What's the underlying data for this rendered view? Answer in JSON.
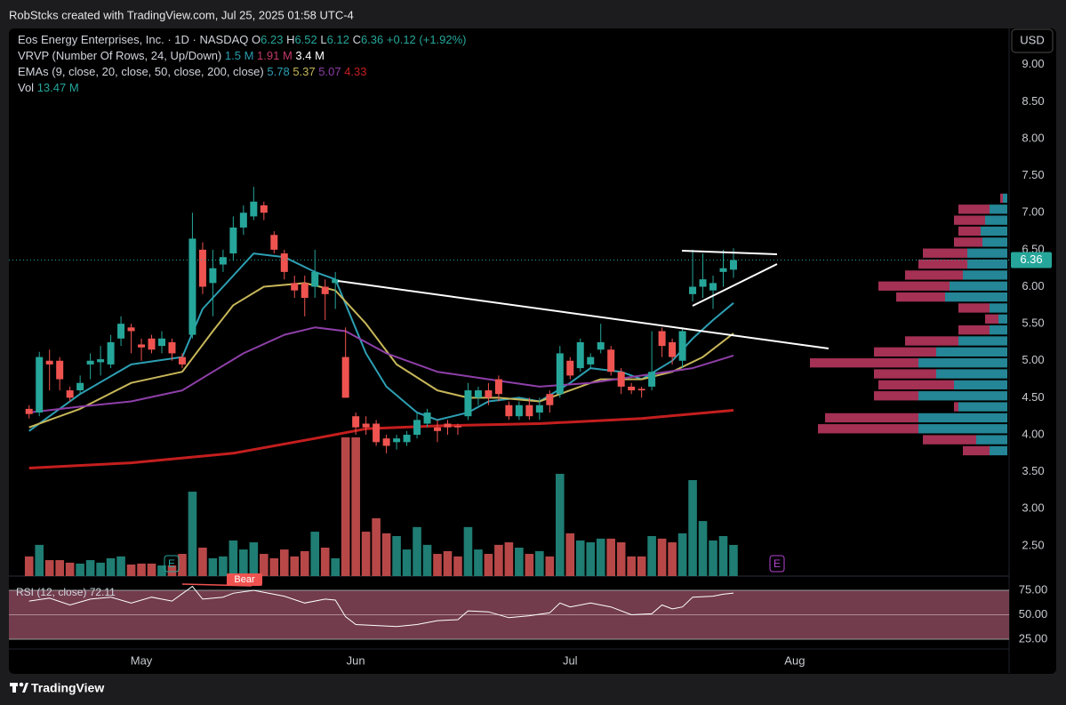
{
  "header": "RobStcks created with TradingView.com, Jul 25, 2025 01:58 UTC-4",
  "footer": "TradingView",
  "chart_data": {
    "type": "candlestick",
    "title": "Eos Energy Enterprises, Inc. · 1D · NASDAQ",
    "ohlc_letters": [
      "O",
      "H",
      "L",
      "C"
    ],
    "change": "+0.12 (+1.92%)",
    "currency": "USD",
    "up_color": "#26a69a",
    "down_color": "#ef5350",
    "open": [
      4.35,
      4.3,
      5.0,
      5.0,
      4.6,
      4.6,
      4.95,
      4.98,
      4.95,
      5.3,
      5.45,
      5.22,
      5.3,
      5.2,
      5.25,
      5.05,
      5.35,
      6.5,
      6.05,
      6.3,
      6.45,
      6.8,
      6.95,
      7.1,
      6.7,
      6.45,
      6.05,
      6.05,
      6.0,
      6.0,
      6.05,
      5.05,
      4.25,
      4.15,
      4.15,
      3.95,
      3.9,
      3.9,
      4.0,
      4.15,
      4.1,
      4.15,
      4.12,
      4.25,
      4.5,
      4.6,
      4.75,
      4.4,
      4.25,
      4.4,
      4.3,
      4.55,
      4.55,
      5.0,
      4.9,
      4.95,
      5.15,
      5.15,
      4.85,
      4.65,
      4.62,
      4.65,
      5.4,
      5.25,
      5.0,
      5.9,
      6.0,
      5.95,
      6.2,
      6.23
    ],
    "high": [
      4.4,
      5.12,
      5.15,
      5.05,
      4.65,
      4.8,
      5.1,
      5.2,
      5.35,
      5.6,
      5.5,
      5.3,
      5.35,
      5.4,
      5.3,
      5.1,
      7.0,
      6.6,
      6.5,
      6.5,
      6.95,
      7.1,
      7.35,
      7.15,
      6.75,
      6.5,
      6.15,
      6.15,
      6.5,
      6.1,
      6.2,
      5.45,
      4.3,
      4.25,
      4.2,
      4.0,
      4.0,
      4.05,
      4.3,
      4.35,
      4.2,
      4.2,
      4.15,
      4.7,
      4.65,
      4.7,
      4.8,
      4.45,
      4.45,
      4.5,
      4.5,
      4.6,
      5.2,
      5.05,
      5.3,
      5.1,
      5.5,
      5.2,
      4.9,
      4.7,
      4.65,
      5.4,
      5.45,
      5.3,
      5.45,
      6.5,
      6.45,
      6.15,
      6.5,
      6.52
    ],
    "low": [
      4.22,
      4.25,
      4.6,
      4.6,
      4.45,
      4.55,
      4.75,
      4.8,
      4.9,
      5.2,
      5.1,
      5.0,
      5.1,
      5.1,
      5.0,
      4.9,
      5.3,
      5.9,
      5.6,
      6.2,
      6.35,
      6.7,
      6.9,
      6.9,
      6.45,
      6.1,
      5.85,
      5.6,
      5.85,
      5.55,
      5.7,
      4.5,
      4.0,
      4.0,
      3.85,
      3.75,
      3.8,
      3.85,
      3.95,
      4.1,
      3.9,
      4.0,
      4.0,
      4.2,
      4.4,
      4.4,
      4.45,
      4.2,
      4.2,
      4.2,
      4.2,
      4.3,
      4.5,
      4.75,
      4.85,
      4.9,
      5.1,
      4.8,
      4.55,
      4.55,
      4.5,
      4.6,
      5.05,
      4.95,
      4.9,
      5.8,
      5.85,
      5.7,
      6.0,
      6.12
    ],
    "close": [
      4.28,
      5.05,
      4.95,
      4.75,
      4.5,
      4.7,
      5.0,
      5.02,
      5.25,
      5.5,
      5.4,
      5.18,
      5.15,
      5.3,
      5.1,
      4.95,
      6.65,
      6.0,
      6.25,
      6.4,
      6.8,
      7.0,
      7.15,
      7.0,
      6.5,
      6.2,
      5.95,
      5.85,
      6.2,
      5.9,
      6.1,
      4.5,
      4.1,
      4.1,
      3.9,
      3.85,
      3.95,
      4.0,
      4.2,
      4.3,
      4.05,
      4.1,
      4.1,
      4.6,
      4.6,
      4.5,
      4.55,
      4.25,
      4.4,
      4.25,
      4.4,
      4.4,
      5.1,
      4.8,
      5.25,
      5.05,
      5.25,
      4.85,
      4.65,
      4.6,
      4.6,
      4.85,
      5.2,
      5.05,
      5.4,
      6.0,
      6.1,
      6.05,
      6.25,
      6.36
    ],
    "xlim": [
      -1.98,
      96.0
    ],
    "xticks": [
      {
        "value": 11,
        "label": "May"
      },
      {
        "value": 32,
        "label": "Jun"
      },
      {
        "value": 53,
        "label": "Jul"
      },
      {
        "value": 75,
        "label": "Aug"
      }
    ],
    "ylim": [
      2.09,
      9.49
    ],
    "yticks": [
      {
        "value": 2.5,
        "label": "2.50"
      },
      {
        "value": 3,
        "label": "3.00"
      },
      {
        "value": 3.5,
        "label": "3.50"
      },
      {
        "value": 4,
        "label": "4.00"
      },
      {
        "value": 4.5,
        "label": "4.50"
      },
      {
        "value": 5,
        "label": "5.00"
      },
      {
        "value": 5.5,
        "label": "5.50"
      },
      {
        "value": 6,
        "label": "6.00"
      },
      {
        "value": 6.5,
        "label": "6.50"
      },
      {
        "value": 7,
        "label": "7.00"
      },
      {
        "value": 7.5,
        "label": "7.50"
      },
      {
        "value": 8,
        "label": "8.00"
      },
      {
        "value": 8.5,
        "label": "8.50"
      },
      {
        "value": 9,
        "label": "9.00"
      }
    ],
    "volume": {
      "name": "Vol",
      "last_label": "13.47 M",
      "up_color": "#1f7d73",
      "down_color": "#b84848",
      "ylim": [
        0,
        61.5
      ],
      "values": [
        8.5,
        13.5,
        6.9,
        6.9,
        5.8,
        5.4,
        6.9,
        5.8,
        7.7,
        8.5,
        5.0,
        5.4,
        5.4,
        4.6,
        4.6,
        9.6,
        36.5,
        12.3,
        7.7,
        8.5,
        15.4,
        11.5,
        14.6,
        9.6,
        7.7,
        11.5,
        8.5,
        10.8,
        19.2,
        12.3,
        7.7,
        60.0,
        60.0,
        19.2,
        25.0,
        18.5,
        17.3,
        11.5,
        21.2,
        13.5,
        9.6,
        10.8,
        8.5,
        21.2,
        11.5,
        9.6,
        13.5,
        14.6,
        12.3,
        9.6,
        10.8,
        8.5,
        44.2,
        18.5,
        15.4,
        14.6,
        16.2,
        16.2,
        14.6,
        8.5,
        8.5,
        17.3,
        16.2,
        14.6,
        18.5,
        41.5,
        23.8,
        15.4,
        17.3,
        13.47
      ]
    },
    "emas": {
      "label": "EMAs (9, close, 20, close, 50, close, 200, close)",
      "series": [
        {
          "color": "#2d9fb3",
          "x": [
            0,
            5,
            10,
            15,
            17,
            20,
            22,
            25,
            28,
            30,
            33,
            35,
            38,
            40,
            43,
            45,
            48,
            50,
            53,
            55,
            58,
            60,
            63,
            65,
            67,
            69
          ],
          "values": [
            4.05,
            4.55,
            4.95,
            5.05,
            5.7,
            6.15,
            6.45,
            6.4,
            6.2,
            6.1,
            5.1,
            4.65,
            4.3,
            4.2,
            4.3,
            4.45,
            4.5,
            4.45,
            4.7,
            4.9,
            4.85,
            4.75,
            5.0,
            5.3,
            5.55,
            5.78
          ]
        },
        {
          "color": "#c7b75a",
          "x": [
            0,
            5,
            10,
            15,
            18,
            20,
            23,
            27,
            30,
            33,
            36,
            40,
            43,
            46,
            50,
            53,
            56,
            60,
            63,
            66,
            69
          ],
          "values": [
            4.1,
            4.35,
            4.7,
            4.85,
            5.4,
            5.75,
            6.0,
            6.05,
            5.95,
            5.5,
            4.95,
            4.6,
            4.5,
            4.5,
            4.45,
            4.6,
            4.75,
            4.75,
            4.85,
            5.05,
            5.37
          ]
        },
        {
          "color": "#8e3fa8",
          "x": [
            0,
            5,
            10,
            15,
            18,
            21,
            25,
            28,
            31,
            35,
            40,
            45,
            50,
            55,
            60,
            65,
            69
          ],
          "values": [
            4.3,
            4.38,
            4.45,
            4.6,
            4.85,
            5.1,
            5.35,
            5.45,
            5.4,
            5.1,
            4.85,
            4.75,
            4.65,
            4.7,
            4.8,
            4.9,
            5.07
          ]
        },
        {
          "color": "#c41e1e",
          "x": [
            0,
            10,
            20,
            28,
            33,
            40,
            50,
            60,
            69
          ],
          "values": [
            3.55,
            3.62,
            3.75,
            3.95,
            4.08,
            4.12,
            4.15,
            4.22,
            4.33
          ]
        }
      ]
    },
    "vrvp": {
      "label": "VRVP (Number Of Rows, 24, Up/Down)",
      "values": [
        1.5,
        1.91,
        3.4
      ],
      "value_labels": [
        "1.5 M",
        "1.91 M",
        "3.4 M"
      ],
      "colors": [
        "#2a9db0",
        "#c23a64",
        "#ffffff"
      ],
      "range": [
        3.71,
        7.27
      ],
      "up": [
        5,
        20,
        25,
        30,
        28,
        45,
        45,
        50,
        65,
        70,
        20,
        10,
        20,
        55,
        80,
        100,
        80,
        60,
        100,
        55,
        100,
        100,
        35,
        20
      ],
      "down": [
        3,
        35,
        35,
        25,
        32,
        50,
        55,
        65,
        80,
        55,
        35,
        15,
        35,
        60,
        70,
        122,
        70,
        85,
        50,
        5,
        105,
        113,
        60,
        30
      ]
    },
    "rsi": {
      "label": "RSI (12, close)",
      "color": "#ffffff",
      "band_color": "#7e4255",
      "ylim": [
        15,
        89.5
      ],
      "yticks": [
        {
          "value": 25,
          "label": "25.00"
        },
        {
          "value": 50,
          "label": "50.00"
        },
        {
          "value": 75,
          "label": "75.00"
        }
      ],
      "x": [
        0,
        2,
        4,
        6,
        8,
        10,
        12,
        14,
        16,
        17,
        19,
        20,
        22,
        23,
        25,
        27,
        29,
        30,
        31,
        32,
        34,
        36,
        38,
        40,
        42,
        43,
        45,
        47,
        49,
        51,
        52,
        53,
        55,
        57,
        59,
        61,
        62,
        63,
        64,
        65,
        67,
        68,
        69
      ],
      "values": [
        64,
        67,
        60,
        66,
        68,
        62,
        68,
        64,
        79,
        66,
        68,
        72,
        75,
        73,
        69,
        62,
        66,
        65,
        48,
        40,
        39,
        38,
        40,
        44,
        45,
        54,
        53,
        47,
        49,
        52,
        62,
        58,
        62,
        58,
        50,
        51,
        60,
        56,
        58,
        68,
        69,
        71,
        72.11
      ]
    },
    "bear_label": "Bear",
    "earnings_label": "E"
  }
}
